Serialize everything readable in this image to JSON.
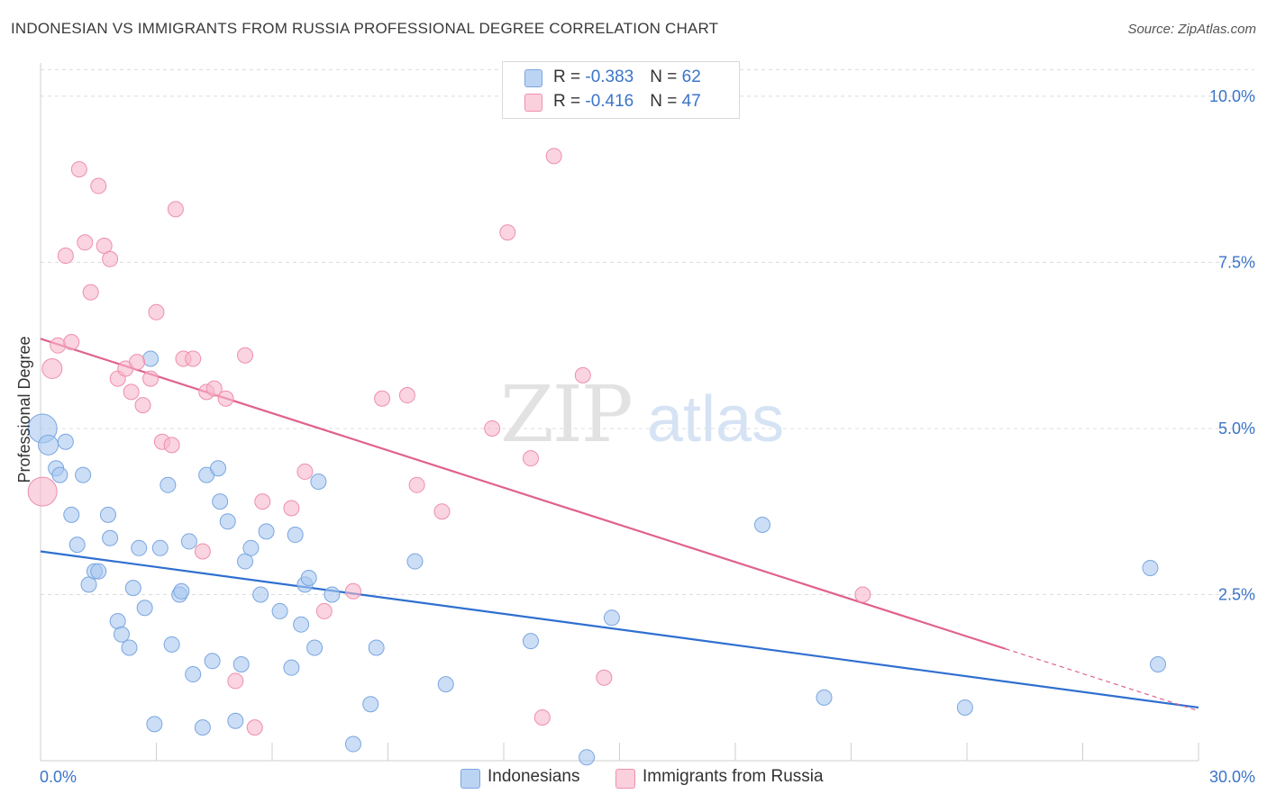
{
  "header": {
    "title": "INDONESIAN VS IMMIGRANTS FROM RUSSIA PROFESSIONAL DEGREE CORRELATION CHART",
    "source": "Source: ZipAtlas.com"
  },
  "watermark": {
    "part1": "ZIP",
    "part2": "atlas"
  },
  "legend_top": {
    "rows": [
      {
        "r_label": "R = ",
        "r_value": "-0.383",
        "n_label": "N = ",
        "n_value": "62"
      },
      {
        "r_label": "R = ",
        "r_value": "-0.416",
        "n_label": "N = ",
        "n_value": "47"
      }
    ]
  },
  "legend_bottom": {
    "items": [
      {
        "label": "Indonesians"
      },
      {
        "label": "Immigrants from Russia"
      }
    ]
  },
  "colors": {
    "blue_fill": "#a9c8f0",
    "blue_stroke": "#7aa6e0",
    "blue_line": "#2f6fd0",
    "pink_fill": "#f7b8cb",
    "pink_stroke": "#ee8fac",
    "pink_line": "#e0628c",
    "axis_label": "#3b74c9",
    "grid": "#dcdcdc"
  },
  "chart_data": {
    "type": "scatter",
    "title": "INDONESIAN VS IMMIGRANTS FROM RUSSIA PROFESSIONAL DEGREE CORRELATION CHART",
    "xlabel": "",
    "ylabel": "Professional Degree",
    "xlim": [
      0,
      30
    ],
    "ylim": [
      0,
      10.5
    ],
    "x_tick_labels": [
      "0.0%",
      "30.0%"
    ],
    "y_ticks": [
      2.5,
      5.0,
      7.5,
      10.0
    ],
    "y_tick_labels": [
      "2.5%",
      "5.0%",
      "7.5%",
      "10.0%"
    ],
    "grid": true,
    "series": [
      {
        "name": "Indonesians",
        "color": "#a9c8f0",
        "trend": {
          "x0": 0,
          "y0": 3.15,
          "x1": 30,
          "y1": 0.8,
          "solid_until": 30
        },
        "points": [
          [
            0.05,
            5.0
          ],
          [
            0.2,
            4.75
          ],
          [
            0.4,
            4.4
          ],
          [
            0.5,
            4.3
          ],
          [
            0.65,
            4.8
          ],
          [
            0.8,
            3.7
          ],
          [
            0.95,
            3.25
          ],
          [
            1.1,
            4.3
          ],
          [
            1.25,
            2.65
          ],
          [
            1.4,
            2.85
          ],
          [
            1.5,
            2.85
          ],
          [
            1.75,
            3.7
          ],
          [
            1.8,
            3.35
          ],
          [
            2.0,
            2.1
          ],
          [
            2.1,
            1.9
          ],
          [
            2.3,
            1.7
          ],
          [
            2.4,
            2.6
          ],
          [
            2.55,
            3.2
          ],
          [
            2.7,
            2.3
          ],
          [
            2.85,
            6.05
          ],
          [
            2.95,
            0.55
          ],
          [
            3.1,
            3.2
          ],
          [
            3.3,
            4.15
          ],
          [
            3.4,
            1.75
          ],
          [
            3.6,
            2.5
          ],
          [
            3.65,
            2.55
          ],
          [
            3.85,
            3.3
          ],
          [
            3.95,
            1.3
          ],
          [
            4.2,
            0.5
          ],
          [
            4.3,
            4.3
          ],
          [
            4.45,
            1.5
          ],
          [
            4.6,
            4.4
          ],
          [
            4.65,
            3.9
          ],
          [
            4.85,
            3.6
          ],
          [
            5.05,
            0.6
          ],
          [
            5.2,
            1.45
          ],
          [
            5.3,
            3.0
          ],
          [
            5.45,
            3.2
          ],
          [
            5.7,
            2.5
          ],
          [
            5.85,
            3.45
          ],
          [
            6.2,
            2.25
          ],
          [
            6.5,
            1.4
          ],
          [
            6.6,
            3.4
          ],
          [
            6.75,
            2.05
          ],
          [
            6.85,
            2.65
          ],
          [
            6.95,
            2.75
          ],
          [
            7.1,
            1.7
          ],
          [
            7.2,
            4.2
          ],
          [
            7.55,
            2.5
          ],
          [
            8.1,
            0.25
          ],
          [
            8.55,
            0.85
          ],
          [
            8.7,
            1.7
          ],
          [
            9.7,
            3.0
          ],
          [
            10.5,
            1.15
          ],
          [
            12.7,
            1.8
          ],
          [
            14.15,
            0.05
          ],
          [
            14.8,
            2.15
          ],
          [
            18.7,
            3.55
          ],
          [
            20.3,
            0.95
          ],
          [
            23.95,
            0.8
          ],
          [
            28.75,
            2.9
          ],
          [
            28.95,
            1.45
          ]
        ]
      },
      {
        "name": "Immigrants from Russia",
        "color": "#f7b8cb",
        "trend": {
          "x0": 0,
          "y0": 6.35,
          "x1": 30,
          "y1": 0.75,
          "solid_until": 25.0
        },
        "points": [
          [
            0.05,
            4.05
          ],
          [
            0.3,
            5.9
          ],
          [
            0.45,
            6.25
          ],
          [
            0.65,
            7.6
          ],
          [
            0.8,
            6.3
          ],
          [
            1.0,
            8.9
          ],
          [
            1.15,
            7.8
          ],
          [
            1.3,
            7.05
          ],
          [
            1.5,
            8.65
          ],
          [
            1.65,
            7.75
          ],
          [
            1.8,
            7.55
          ],
          [
            2.0,
            5.75
          ],
          [
            2.2,
            5.9
          ],
          [
            2.35,
            5.55
          ],
          [
            2.5,
            6.0
          ],
          [
            2.65,
            5.35
          ],
          [
            2.85,
            5.75
          ],
          [
            3.0,
            6.75
          ],
          [
            3.15,
            4.8
          ],
          [
            3.4,
            4.75
          ],
          [
            3.5,
            8.3
          ],
          [
            3.7,
            6.05
          ],
          [
            3.95,
            6.05
          ],
          [
            4.2,
            3.15
          ],
          [
            4.3,
            5.55
          ],
          [
            4.5,
            5.6
          ],
          [
            4.8,
            5.45
          ],
          [
            5.05,
            1.2
          ],
          [
            5.3,
            6.1
          ],
          [
            5.55,
            0.5
          ],
          [
            5.75,
            3.9
          ],
          [
            6.5,
            3.8
          ],
          [
            6.85,
            4.35
          ],
          [
            7.35,
            2.25
          ],
          [
            8.1,
            2.55
          ],
          [
            8.85,
            5.45
          ],
          [
            9.5,
            5.5
          ],
          [
            9.75,
            4.15
          ],
          [
            10.4,
            3.75
          ],
          [
            11.7,
            5.0
          ],
          [
            12.1,
            7.95
          ],
          [
            12.7,
            4.55
          ],
          [
            13.0,
            0.65
          ],
          [
            13.3,
            9.1
          ],
          [
            14.05,
            5.8
          ],
          [
            14.6,
            1.25
          ],
          [
            21.3,
            2.5
          ]
        ]
      }
    ]
  }
}
